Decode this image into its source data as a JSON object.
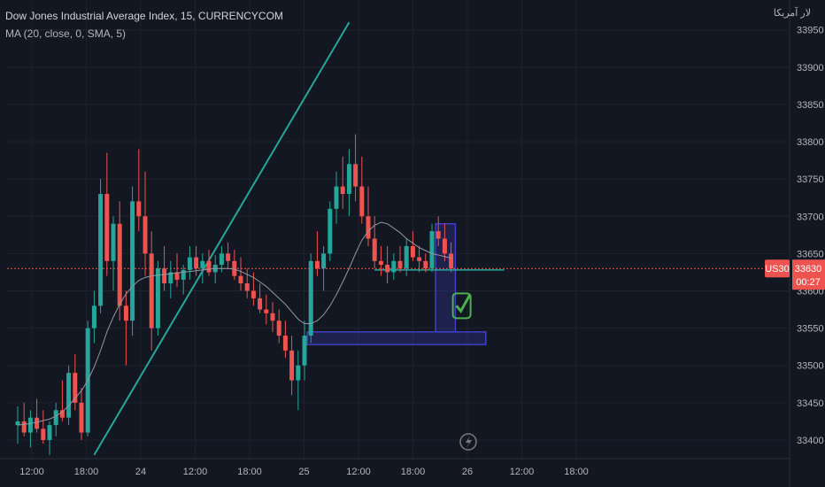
{
  "header": {
    "symbol_line": "Dow Jones Industrial Average Index, 15, CURRENCYCOM",
    "ma_line": "MA (20, close, 0, SMA, 5)",
    "brand_text": "لار آمریکا"
  },
  "colors": {
    "background": "#131722",
    "up": "#26a69a",
    "down": "#ef5350",
    "trendline": "#26a69a",
    "box": "#3f3fc7",
    "price_line": "#ef5350",
    "check": "#4caf50"
  },
  "price_tag": {
    "symbol": "US30",
    "price": "33630",
    "countdown": "00:27"
  },
  "chart_data": {
    "type": "candlestick",
    "y_ticks": [
      33950,
      33900,
      33850,
      33800,
      33750,
      33700,
      33650,
      33600,
      33550,
      33500,
      33450,
      33400
    ],
    "ylim": [
      33375,
      33990
    ],
    "x_ticks": [
      "12:00",
      "18:00",
      "24",
      "12:00",
      "18:00",
      "25",
      "12:00",
      "18:00",
      "26",
      "12:00",
      "18:00"
    ],
    "current_price": 33630,
    "candles": [
      [
        33420,
        33445,
        33395,
        33425
      ],
      [
        33425,
        33450,
        33405,
        33410
      ],
      [
        33410,
        33440,
        33390,
        33430
      ],
      [
        33430,
        33455,
        33410,
        33415
      ],
      [
        33415,
        33440,
        33395,
        33400
      ],
      [
        33400,
        33425,
        33380,
        33420
      ],
      [
        33420,
        33450,
        33405,
        33440
      ],
      [
        33440,
        33480,
        33425,
        33430
      ],
      [
        33430,
        33500,
        33420,
        33490
      ],
      [
        33490,
        33515,
        33440,
        33450
      ],
      [
        33450,
        33470,
        33400,
        33410
      ],
      [
        33410,
        33560,
        33405,
        33550
      ],
      [
        33550,
        33600,
        33530,
        33580
      ],
      [
        33580,
        33750,
        33570,
        33730
      ],
      [
        33730,
        33785,
        33620,
        33640
      ],
      [
        33640,
        33700,
        33600,
        33690
      ],
      [
        33690,
        33720,
        33560,
        33580
      ],
      [
        33580,
        33600,
        33500,
        33560
      ],
      [
        33560,
        33740,
        33540,
        33720
      ],
      [
        33720,
        33790,
        33680,
        33700
      ],
      [
        33700,
        33760,
        33620,
        33650
      ],
      [
        33650,
        33680,
        33520,
        33550
      ],
      [
        33550,
        33640,
        33540,
        33630
      ],
      [
        33630,
        33660,
        33600,
        33610
      ],
      [
        33610,
        33640,
        33590,
        33625
      ],
      [
        33625,
        33650,
        33605,
        33615
      ],
      [
        33615,
        33635,
        33595,
        33628
      ],
      [
        33628,
        33660,
        33615,
        33645
      ],
      [
        33645,
        33660,
        33620,
        33630
      ],
      [
        33630,
        33650,
        33610,
        33640
      ],
      [
        33640,
        33655,
        33620,
        33625
      ],
      [
        33625,
        33648,
        33610,
        33635
      ],
      [
        33635,
        33660,
        33625,
        33650
      ],
      [
        33650,
        33665,
        33630,
        33640
      ],
      [
        33640,
        33655,
        33615,
        33620
      ],
      [
        33620,
        33645,
        33600,
        33610
      ],
      [
        33610,
        33630,
        33590,
        33600
      ],
      [
        33600,
        33625,
        33580,
        33590
      ],
      [
        33590,
        33610,
        33570,
        33575
      ],
      [
        33575,
        33595,
        33555,
        33570
      ],
      [
        33570,
        33585,
        33545,
        33560
      ],
      [
        33560,
        33575,
        33530,
        33540
      ],
      [
        33540,
        33560,
        33510,
        33520
      ],
      [
        33520,
        33540,
        33460,
        33480
      ],
      [
        33480,
        33520,
        33440,
        33500
      ],
      [
        33500,
        33560,
        33480,
        33540
      ],
      [
        33540,
        33650,
        33530,
        33640
      ],
      [
        33640,
        33680,
        33620,
        33630
      ],
      [
        33630,
        33660,
        33600,
        33650
      ],
      [
        33650,
        33720,
        33640,
        33710
      ],
      [
        33710,
        33760,
        33690,
        33740
      ],
      [
        33740,
        33780,
        33710,
        33730
      ],
      [
        33730,
        33790,
        33700,
        33770
      ],
      [
        33770,
        33810,
        33720,
        33740
      ],
      [
        33740,
        33780,
        33690,
        33700
      ],
      [
        33700,
        33740,
        33660,
        33670
      ],
      [
        33670,
        33700,
        33630,
        33640
      ],
      [
        33640,
        33660,
        33620,
        33635
      ],
      [
        33635,
        33660,
        33610,
        33625
      ],
      [
        33625,
        33650,
        33615,
        33640
      ],
      [
        33640,
        33660,
        33625,
        33630
      ],
      [
        33630,
        33670,
        33620,
        33660
      ],
      [
        33660,
        33680,
        33640,
        33645
      ],
      [
        33645,
        33660,
        33625,
        33640
      ],
      [
        33640,
        33650,
        33625,
        33630
      ],
      [
        33630,
        33690,
        33625,
        33680
      ],
      [
        33680,
        33700,
        33660,
        33670
      ],
      [
        33670,
        33690,
        33640,
        33650
      ],
      [
        33650,
        33665,
        33625,
        33630
      ]
    ],
    "ma_values": [
      33420,
      33421,
      33422,
      33424,
      33426,
      33428,
      33432,
      33438,
      33446,
      33456,
      33466,
      33480,
      33498,
      33520,
      33545,
      33565,
      33582,
      33596,
      33606,
      33614,
      33618,
      33620,
      33621,
      33622,
      33623,
      33624,
      33625,
      33626,
      33627,
      33628,
      33629,
      33630,
      33630,
      33630,
      33629,
      33626,
      33622,
      33618,
      33612,
      33606,
      33598,
      33590,
      33582,
      33572,
      33562,
      33556,
      33556,
      33560,
      33568,
      33580,
      33595,
      33612,
      33630,
      33650,
      33668,
      33680,
      33688,
      33692,
      33690,
      33684,
      33678,
      33670,
      33664,
      33658,
      33654,
      33650,
      33648,
      33646,
      33644
    ],
    "trendline": {
      "from": [
        33380,
        12
      ],
      "to": [
        33960,
        52
      ]
    },
    "support_line": {
      "price": 33628,
      "from_candle": 56,
      "to_candle": 68
    },
    "box_zone": {
      "top": 33545,
      "bottom": 33528,
      "from_candle": 46,
      "to_candle": 74
    },
    "box_pillar": {
      "top": 33690,
      "bottom": 33545,
      "from_candle": 65,
      "to_candle": 67
    }
  }
}
